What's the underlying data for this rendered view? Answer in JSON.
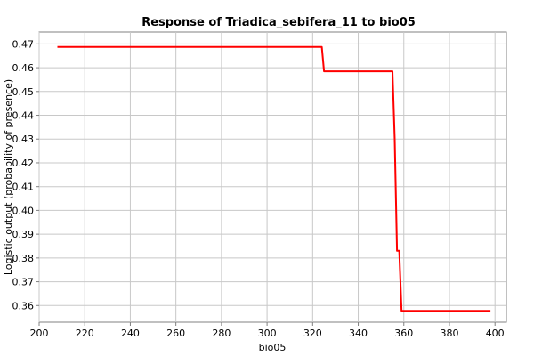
{
  "chart_data": {
    "type": "line",
    "title": "Response of Triadica_sebifera_11 to bio05",
    "xlabel": "bio05",
    "ylabel": "Logistic output (probability of presence)",
    "xlim": [
      200,
      405
    ],
    "ylim": [
      0.353,
      0.475
    ],
    "x_ticks": [
      200,
      220,
      240,
      260,
      280,
      300,
      320,
      340,
      360,
      380,
      400
    ],
    "y_ticks": [
      0.36,
      0.37,
      0.38,
      0.39,
      0.4,
      0.41,
      0.42,
      0.43,
      0.44,
      0.45,
      0.46,
      0.47
    ],
    "y_tick_labels": [
      "0.36",
      "0.37",
      "0.38",
      "0.39",
      "0.40",
      "0.41",
      "0.42",
      "0.43",
      "0.44",
      "0.45",
      "0.46",
      "0.47"
    ],
    "grid": true,
    "series": [
      {
        "color": "#ff0000",
        "x": [
          208,
          324,
          325,
          355,
          356,
          357,
          358,
          359,
          398
        ],
        "y": [
          0.4687,
          0.4687,
          0.4585,
          0.4585,
          0.43,
          0.383,
          0.383,
          0.3578,
          0.3578
        ]
      }
    ]
  }
}
